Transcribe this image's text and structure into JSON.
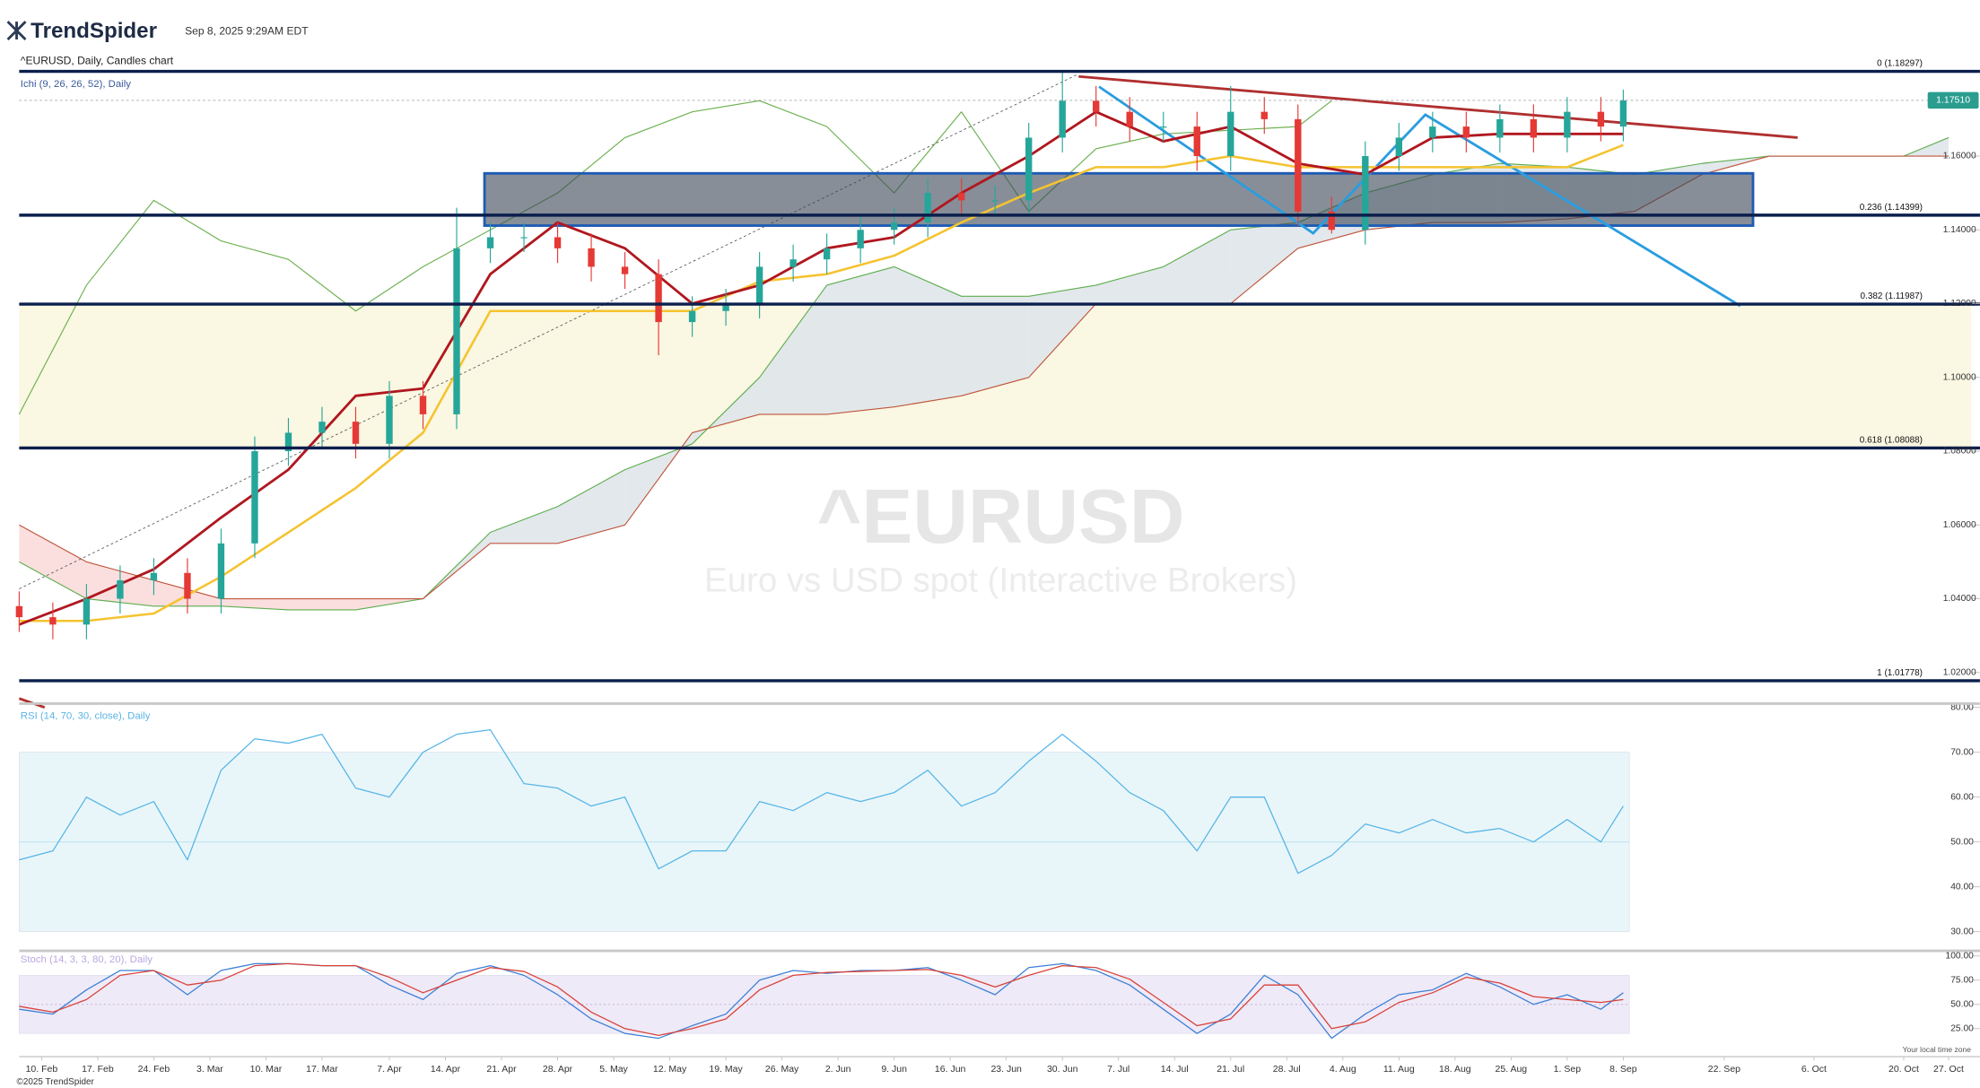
{
  "header": {
    "brand": "TrendSpider",
    "timestamp": "Sep 8, 2025 9:29AM EDT"
  },
  "footer": {
    "copyright": "©2025 TrendSpider",
    "timezone_note": "Your local time zone"
  },
  "chart_data": [
    {
      "type": "candlestick",
      "title": "^EURUSD, Daily, Candles chart",
      "indicator_label": "Ichi (9, 26, 26, 52), Daily",
      "watermark": "^EURUSD",
      "watermark_subtitle": "Euro vs USD spot (Interactive Brokers)",
      "x": [
        0,
        3,
        6,
        9,
        12,
        15,
        18,
        21,
        24,
        27,
        30,
        33,
        36,
        39,
        42,
        45,
        48,
        51,
        54,
        57,
        60,
        63,
        66,
        69,
        72,
        75,
        78,
        81,
        84,
        87,
        90,
        93,
        96,
        99,
        102,
        105,
        108,
        111,
        114,
        117,
        120,
        123,
        126,
        129,
        132,
        135,
        138,
        141,
        143
      ],
      "open": [
        1.038,
        1.035,
        1.033,
        1.04,
        1.045,
        1.047,
        1.04,
        1.055,
        1.08,
        1.085,
        1.088,
        1.082,
        1.095,
        1.09,
        1.135,
        1.138,
        1.138,
        1.135,
        1.13,
        1.128,
        1.115,
        1.118,
        1.12,
        1.13,
        1.132,
        1.135,
        1.14,
        1.142,
        1.15,
        1.148,
        1.148,
        1.165,
        1.175,
        1.172,
        1.168,
        1.168,
        1.16,
        1.172,
        1.17,
        1.145,
        1.14,
        1.16,
        1.165,
        1.168,
        1.165,
        1.17,
        1.165,
        1.172,
        1.168
      ],
      "high": [
        1.042,
        1.039,
        1.044,
        1.049,
        1.051,
        1.051,
        1.059,
        1.084,
        1.089,
        1.092,
        1.092,
        1.099,
        1.099,
        1.146,
        1.142,
        1.142,
        1.142,
        1.139,
        1.134,
        1.132,
        1.122,
        1.124,
        1.134,
        1.136,
        1.139,
        1.144,
        1.146,
        1.154,
        1.154,
        1.152,
        1.169,
        1.183,
        1.179,
        1.176,
        1.172,
        1.172,
        1.179,
        1.176,
        1.174,
        1.149,
        1.164,
        1.169,
        1.172,
        1.172,
        1.174,
        1.174,
        1.176,
        1.176,
        1.178
      ],
      "low": [
        1.031,
        1.029,
        1.029,
        1.036,
        1.041,
        1.036,
        1.036,
        1.051,
        1.076,
        1.081,
        1.078,
        1.078,
        1.086,
        1.086,
        1.131,
        1.134,
        1.131,
        1.126,
        1.124,
        1.106,
        1.111,
        1.114,
        1.116,
        1.126,
        1.128,
        1.131,
        1.136,
        1.138,
        1.144,
        1.144,
        1.144,
        1.161,
        1.168,
        1.164,
        1.164,
        1.156,
        1.156,
        1.166,
        1.141,
        1.139,
        1.136,
        1.156,
        1.161,
        1.161,
        1.161,
        1.161,
        1.161,
        1.164,
        1.164
      ],
      "close": [
        1.035,
        1.033,
        1.04,
        1.045,
        1.047,
        1.04,
        1.055,
        1.08,
        1.085,
        1.088,
        1.082,
        1.095,
        1.09,
        1.135,
        1.138,
        1.138,
        1.135,
        1.13,
        1.128,
        1.115,
        1.118,
        1.12,
        1.13,
        1.132,
        1.135,
        1.14,
        1.142,
        1.15,
        1.148,
        1.148,
        1.165,
        1.175,
        1.172,
        1.168,
        1.168,
        1.16,
        1.172,
        1.17,
        1.145,
        1.14,
        1.16,
        1.165,
        1.168,
        1.165,
        1.17,
        1.165,
        1.172,
        1.168,
        1.1751
      ],
      "up_color": "#26a69a",
      "down_color": "#e53935",
      "ichimoku": {
        "x": [
          0,
          6,
          12,
          18,
          24,
          30,
          36,
          42,
          48,
          54,
          60,
          66,
          72,
          78,
          84,
          90,
          96,
          102,
          108,
          114,
          120,
          126,
          132,
          138,
          143
        ],
        "tenkan": [
          1.033,
          1.04,
          1.048,
          1.062,
          1.075,
          1.095,
          1.097,
          1.128,
          1.142,
          1.135,
          1.12,
          1.125,
          1.135,
          1.138,
          1.15,
          1.16,
          1.172,
          1.164,
          1.168,
          1.158,
          1.155,
          1.165,
          1.166,
          1.166,
          1.166
        ],
        "kijun": [
          1.034,
          1.034,
          1.036,
          1.046,
          1.058,
          1.07,
          1.085,
          1.118,
          1.118,
          1.118,
          1.118,
          1.126,
          1.128,
          1.133,
          1.142,
          1.15,
          1.157,
          1.157,
          1.16,
          1.157,
          1.157,
          1.157,
          1.157,
          1.157,
          1.163
        ],
        "tenkan_color": "#b0171f",
        "kijun_color": "#f5c330"
      },
      "cloud": {
        "x": [
          0,
          6,
          12,
          18,
          24,
          30,
          36,
          42,
          48,
          54,
          60,
          66,
          72,
          78,
          84,
          90,
          96,
          102,
          108,
          114,
          120,
          126,
          132,
          138,
          144,
          150,
          156,
          162,
          168,
          172
        ],
        "span_a": [
          1.05,
          1.04,
          1.038,
          1.038,
          1.037,
          1.037,
          1.04,
          1.058,
          1.065,
          1.075,
          1.082,
          1.1,
          1.125,
          1.13,
          1.122,
          1.122,
          1.125,
          1.13,
          1.14,
          1.142,
          1.15,
          1.155,
          1.158,
          1.157,
          1.155,
          1.158,
          1.16,
          1.16,
          1.16,
          1.165
        ],
        "span_b": [
          1.06,
          1.05,
          1.045,
          1.04,
          1.04,
          1.04,
          1.04,
          1.055,
          1.055,
          1.06,
          1.085,
          1.09,
          1.09,
          1.092,
          1.095,
          1.1,
          1.12,
          1.12,
          1.12,
          1.135,
          1.14,
          1.142,
          1.142,
          1.143,
          1.145,
          1.155,
          1.16,
          1.16,
          1.16,
          1.16
        ],
        "span_a_color": "#5fae4f",
        "span_b_color": "#c0553d",
        "bull_fill": "#dfe6ea",
        "bear_fill": "#fbdcda"
      },
      "lagging": {
        "x": [
          0,
          6,
          12,
          18,
          24,
          30,
          36,
          42,
          48,
          54,
          60,
          66,
          72,
          78,
          84,
          90,
          96,
          102,
          108,
          114,
          117
        ],
        "values": [
          1.09,
          1.125,
          1.148,
          1.137,
          1.132,
          1.118,
          1.13,
          1.14,
          1.15,
          1.165,
          1.172,
          1.175,
          1.168,
          1.15,
          1.172,
          1.145,
          1.162,
          1.166,
          1.167,
          1.168,
          1.175
        ],
        "color": "#6bb04f"
      },
      "fib_levels": [
        {
          "value": 1.18297,
          "label": "0 (1.18297)"
        },
        {
          "value": 1.14399,
          "label": "0.236 (1.14399)"
        },
        {
          "value": 1.11987,
          "label": "0.382 (1.11987)"
        },
        {
          "value": 1.08088,
          "label": "0.618 (1.08088)"
        },
        {
          "value": 1.01778,
          "label": "1 (1.01778)"
        }
      ],
      "fib_color": "#0b1f4d",
      "fib_band_color": "#faf7e2",
      "last_price": {
        "value": 1.1751,
        "label": "1.17510"
      },
      "last_price_color": "#2a9d8f",
      "xlim": [
        0,
        174
      ],
      "xticks": [
        {
          "value": 2,
          "label": "10. Feb"
        },
        {
          "value": 7,
          "label": "17. Feb"
        },
        {
          "value": 12,
          "label": "24. Feb"
        },
        {
          "value": 17,
          "label": "3. Mar"
        },
        {
          "value": 22,
          "label": "10. Mar"
        },
        {
          "value": 27,
          "label": "17. Mar"
        },
        {
          "value": 33,
          "label": "7. Apr"
        },
        {
          "value": 38,
          "label": "14. Apr"
        },
        {
          "value": 43,
          "label": "21. Apr"
        },
        {
          "value": 48,
          "label": "28. Apr"
        },
        {
          "value": 53,
          "label": "5. May"
        },
        {
          "value": 58,
          "label": "12. May"
        },
        {
          "value": 63,
          "label": "19. May"
        },
        {
          "value": 68,
          "label": "26. May"
        },
        {
          "value": 73,
          "label": "2. Jun"
        },
        {
          "value": 78,
          "label": "9. Jun"
        },
        {
          "value": 83,
          "label": "16. Jun"
        },
        {
          "value": 88,
          "label": "23. Jun"
        },
        {
          "value": 93,
          "label": "30. Jun"
        },
        {
          "value": 98,
          "label": "7. Jul"
        },
        {
          "value": 103,
          "label": "14. Jul"
        },
        {
          "value": 108,
          "label": "21. Jul"
        },
        {
          "value": 113,
          "label": "28. Jul"
        },
        {
          "value": 118,
          "label": "4. Aug"
        },
        {
          "value": 123,
          "label": "11. Aug"
        },
        {
          "value": 128,
          "label": "18. Aug"
        },
        {
          "value": 133,
          "label": "25. Aug"
        },
        {
          "value": 138,
          "label": "1. Sep"
        },
        {
          "value": 143,
          "label": "8. Sep"
        },
        {
          "value": 152,
          "label": "22. Sep"
        },
        {
          "value": 160,
          "label": "6. Oct"
        },
        {
          "value": 168,
          "label": "20. Oct"
        },
        {
          "value": 172,
          "label": "27. Oct"
        }
      ],
      "ylim": [
        1.014,
        1.184
      ],
      "yticks": [
        {
          "value": 1.02,
          "label": "1.02000"
        },
        {
          "value": 1.04,
          "label": "1.04000"
        },
        {
          "value": 1.06,
          "label": "1.06000"
        },
        {
          "value": 1.08,
          "label": "1.08000"
        },
        {
          "value": 1.1,
          "label": "1.10000"
        },
        {
          "value": 1.12,
          "label": "1.12000"
        },
        {
          "value": 1.14,
          "label": "1.14000"
        },
        {
          "value": 1.16,
          "label": "1.16000"
        }
      ]
    },
    {
      "type": "line",
      "title": "RSI (14, 70, 30, close), Daily",
      "title_color": "#5ab4e5",
      "x": [
        0,
        3,
        6,
        9,
        12,
        15,
        18,
        21,
        24,
        27,
        30,
        33,
        36,
        39,
        42,
        45,
        48,
        51,
        54,
        57,
        60,
        63,
        66,
        69,
        72,
        75,
        78,
        81,
        84,
        87,
        90,
        93,
        96,
        99,
        102,
        105,
        108,
        111,
        114,
        117,
        120,
        123,
        126,
        129,
        132,
        135,
        138,
        141,
        143
      ],
      "series": [
        {
          "color": "#57b5e7",
          "values": [
            46,
            48,
            60,
            56,
            59,
            46,
            66,
            73,
            72,
            74,
            62,
            60,
            70,
            74,
            75,
            63,
            62,
            58,
            60,
            44,
            48,
            48,
            59,
            57,
            61,
            59,
            61,
            66,
            58,
            61,
            68,
            74,
            68,
            61,
            57,
            48,
            60,
            60,
            43,
            47,
            54,
            52,
            55,
            52,
            53,
            50,
            55,
            50,
            58
          ]
        }
      ],
      "band": [
        30,
        70
      ],
      "band_color": "#e9f6f9",
      "midline": 50,
      "xlim": [
        0,
        174
      ],
      "ylim": [
        26,
        80
      ],
      "yticks": [
        {
          "value": 30,
          "label": "30.00"
        },
        {
          "value": 40,
          "label": "40.00"
        },
        {
          "value": 50,
          "label": "50.00"
        },
        {
          "value": 60,
          "label": "60.00"
        },
        {
          "value": 70,
          "label": "70.00"
        },
        {
          "value": 80,
          "label": "80.00"
        }
      ]
    },
    {
      "type": "line",
      "title": "Stoch (14, 3, 3, 80, 20), Daily",
      "title_color": "#b9a7e0",
      "x": [
        0,
        3,
        6,
        9,
        12,
        15,
        18,
        21,
        24,
        27,
        30,
        33,
        36,
        39,
        42,
        45,
        48,
        51,
        54,
        57,
        60,
        63,
        66,
        69,
        72,
        75,
        78,
        81,
        84,
        87,
        90,
        93,
        96,
        99,
        102,
        105,
        108,
        111,
        114,
        117,
        120,
        123,
        126,
        129,
        132,
        135,
        138,
        141,
        143
      ],
      "series": [
        {
          "color": "#3c7fd6",
          "values": [
            45,
            40,
            65,
            85,
            85,
            60,
            85,
            92,
            92,
            90,
            90,
            70,
            55,
            82,
            90,
            80,
            60,
            35,
            20,
            15,
            28,
            40,
            75,
            85,
            82,
            85,
            85,
            88,
            75,
            60,
            88,
            92,
            85,
            70,
            45,
            20,
            40,
            80,
            60,
            15,
            40,
            60,
            65,
            82,
            68,
            50,
            60,
            45,
            62
          ]
        },
        {
          "color": "#d9413a",
          "values": [
            48,
            42,
            55,
            80,
            85,
            70,
            75,
            90,
            92,
            90,
            90,
            78,
            62,
            75,
            88,
            84,
            68,
            42,
            25,
            18,
            25,
            35,
            65,
            80,
            83,
            84,
            85,
            86,
            80,
            68,
            80,
            90,
            88,
            76,
            52,
            28,
            35,
            70,
            70,
            25,
            32,
            52,
            62,
            78,
            72,
            58,
            55,
            52,
            55
          ]
        }
      ],
      "band": [
        20,
        80
      ],
      "band_color": "#efeaf7",
      "midline": 50,
      "xlim": [
        0,
        174
      ],
      "ylim": [
        0,
        100
      ],
      "yticks": [
        {
          "value": 25,
          "label": "25.00"
        },
        {
          "value": 50,
          "label": "50.00"
        },
        {
          "value": 75,
          "label": "75.00"
        },
        {
          "value": 100,
          "label": "100.00"
        }
      ]
    }
  ]
}
